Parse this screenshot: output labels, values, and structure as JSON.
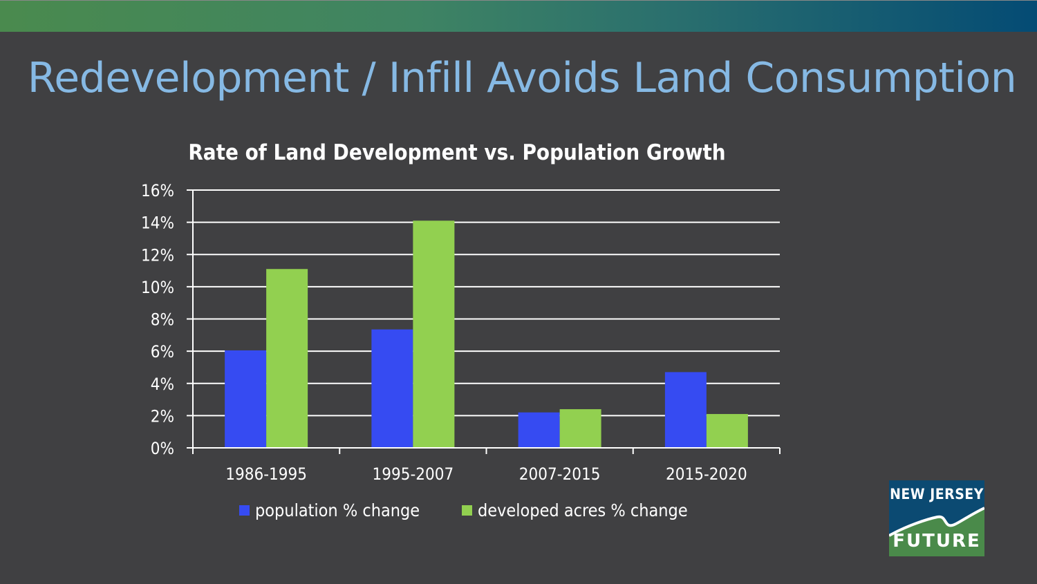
{
  "slide": {
    "title": "Redevelopment / Infill Avoids Land Consumption",
    "logo": {
      "line1": "NEW JERSEY",
      "line2": "FUTURE",
      "top_color": "#0b4a72",
      "bottom_color": "#4a8a4a"
    },
    "band_colors": [
      "#4a8a4e",
      "#044b74"
    ]
  },
  "chart_data": {
    "type": "bar",
    "title": "Rate of Land Development vs. Population Growth",
    "xlabel": "",
    "ylabel": "",
    "categories": [
      "1986-1995",
      "1995-2007",
      "2007-2015",
      "2015-2020"
    ],
    "series": [
      {
        "name": "population % change",
        "color": "#364bf2",
        "values": [
          6.05,
          7.35,
          2.2,
          4.7
        ]
      },
      {
        "name": "developed acres % change",
        "color": "#92d050",
        "values": [
          11.1,
          14.1,
          2.4,
          2.1
        ]
      }
    ],
    "ylim": [
      0,
      16
    ],
    "yticks": [
      0,
      2,
      4,
      6,
      8,
      10,
      12,
      14,
      16
    ],
    "ytick_labels": [
      "0%",
      "2%",
      "4%",
      "6%",
      "8%",
      "10%",
      "12%",
      "14%",
      "16%"
    ],
    "grid": true,
    "legend": "bottom"
  }
}
